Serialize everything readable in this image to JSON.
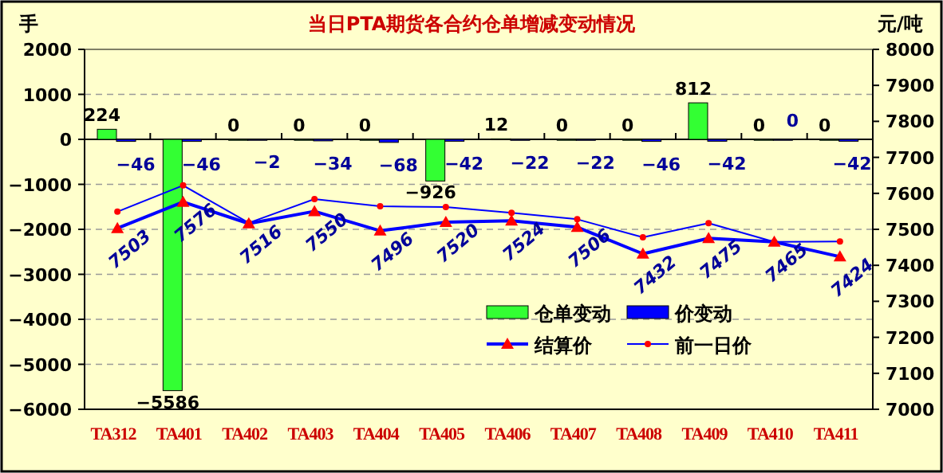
{
  "chart_data": {
    "type": "bar",
    "title": "当日PTA期货各合约仓单增减变动情况",
    "ylabel": "手",
    "y2label": "元/吨",
    "categories": [
      "TA312",
      "TA401",
      "TA402",
      "TA403",
      "TA404",
      "TA405",
      "TA406",
      "TA407",
      "TA408",
      "TA409",
      "TA410",
      "TA411"
    ],
    "series": [
      {
        "name": "仓单变动",
        "color": "#33ff33",
        "values": [
          224,
          -5586,
          0,
          0,
          0,
          -926,
          12,
          0,
          0,
          812,
          0,
          0
        ],
        "value_labels": [
          "224",
          "−5586",
          "0",
          "0",
          "0",
          "−926",
          "12",
          "0",
          "0",
          "812",
          "0",
          "0"
        ]
      },
      {
        "name": "价变动",
        "color": "#0000ff",
        "values": [
          -46,
          -46,
          -2,
          -34,
          -68,
          -42,
          -22,
          -22,
          -46,
          -42,
          0,
          -42
        ],
        "value_labels": [
          "−46",
          "−46",
          "−2",
          "−34",
          "−68",
          "−42",
          "−22",
          "−22",
          "−46",
          "−42",
          "0",
          "−42"
        ]
      },
      {
        "name": "结算价",
        "type": "line",
        "axis": "y2",
        "color": "#0000ff",
        "marker": "triangle",
        "values": [
          7503,
          7576,
          7516,
          7550,
          7496,
          7520,
          7524,
          7506,
          7432,
          7475,
          7465,
          7424
        ],
        "value_labels": [
          "7503",
          "7576",
          "7516",
          "7550",
          "7496",
          "7520",
          "7524",
          "7506",
          "7432",
          "7475",
          "7465",
          "7424"
        ]
      },
      {
        "name": "前一日价",
        "type": "line",
        "axis": "y2",
        "color": "#0000ff",
        "marker": "circle",
        "values": [
          7549,
          7622,
          7518,
          7584,
          7564,
          7562,
          7546,
          7528,
          7478,
          7517,
          7465,
          7466
        ]
      }
    ],
    "ylim": [
      -6000,
      2000
    ],
    "yticks": [
      -6000,
      -5000,
      -4000,
      -3000,
      -2000,
      -1000,
      0,
      1000,
      2000
    ],
    "y2lim": [
      7000,
      8000
    ],
    "y2ticks": [
      7000,
      7100,
      7200,
      7300,
      7400,
      7500,
      7600,
      7700,
      7800,
      7900,
      8000
    ],
    "grid": "y",
    "legend": "bottom right"
  }
}
